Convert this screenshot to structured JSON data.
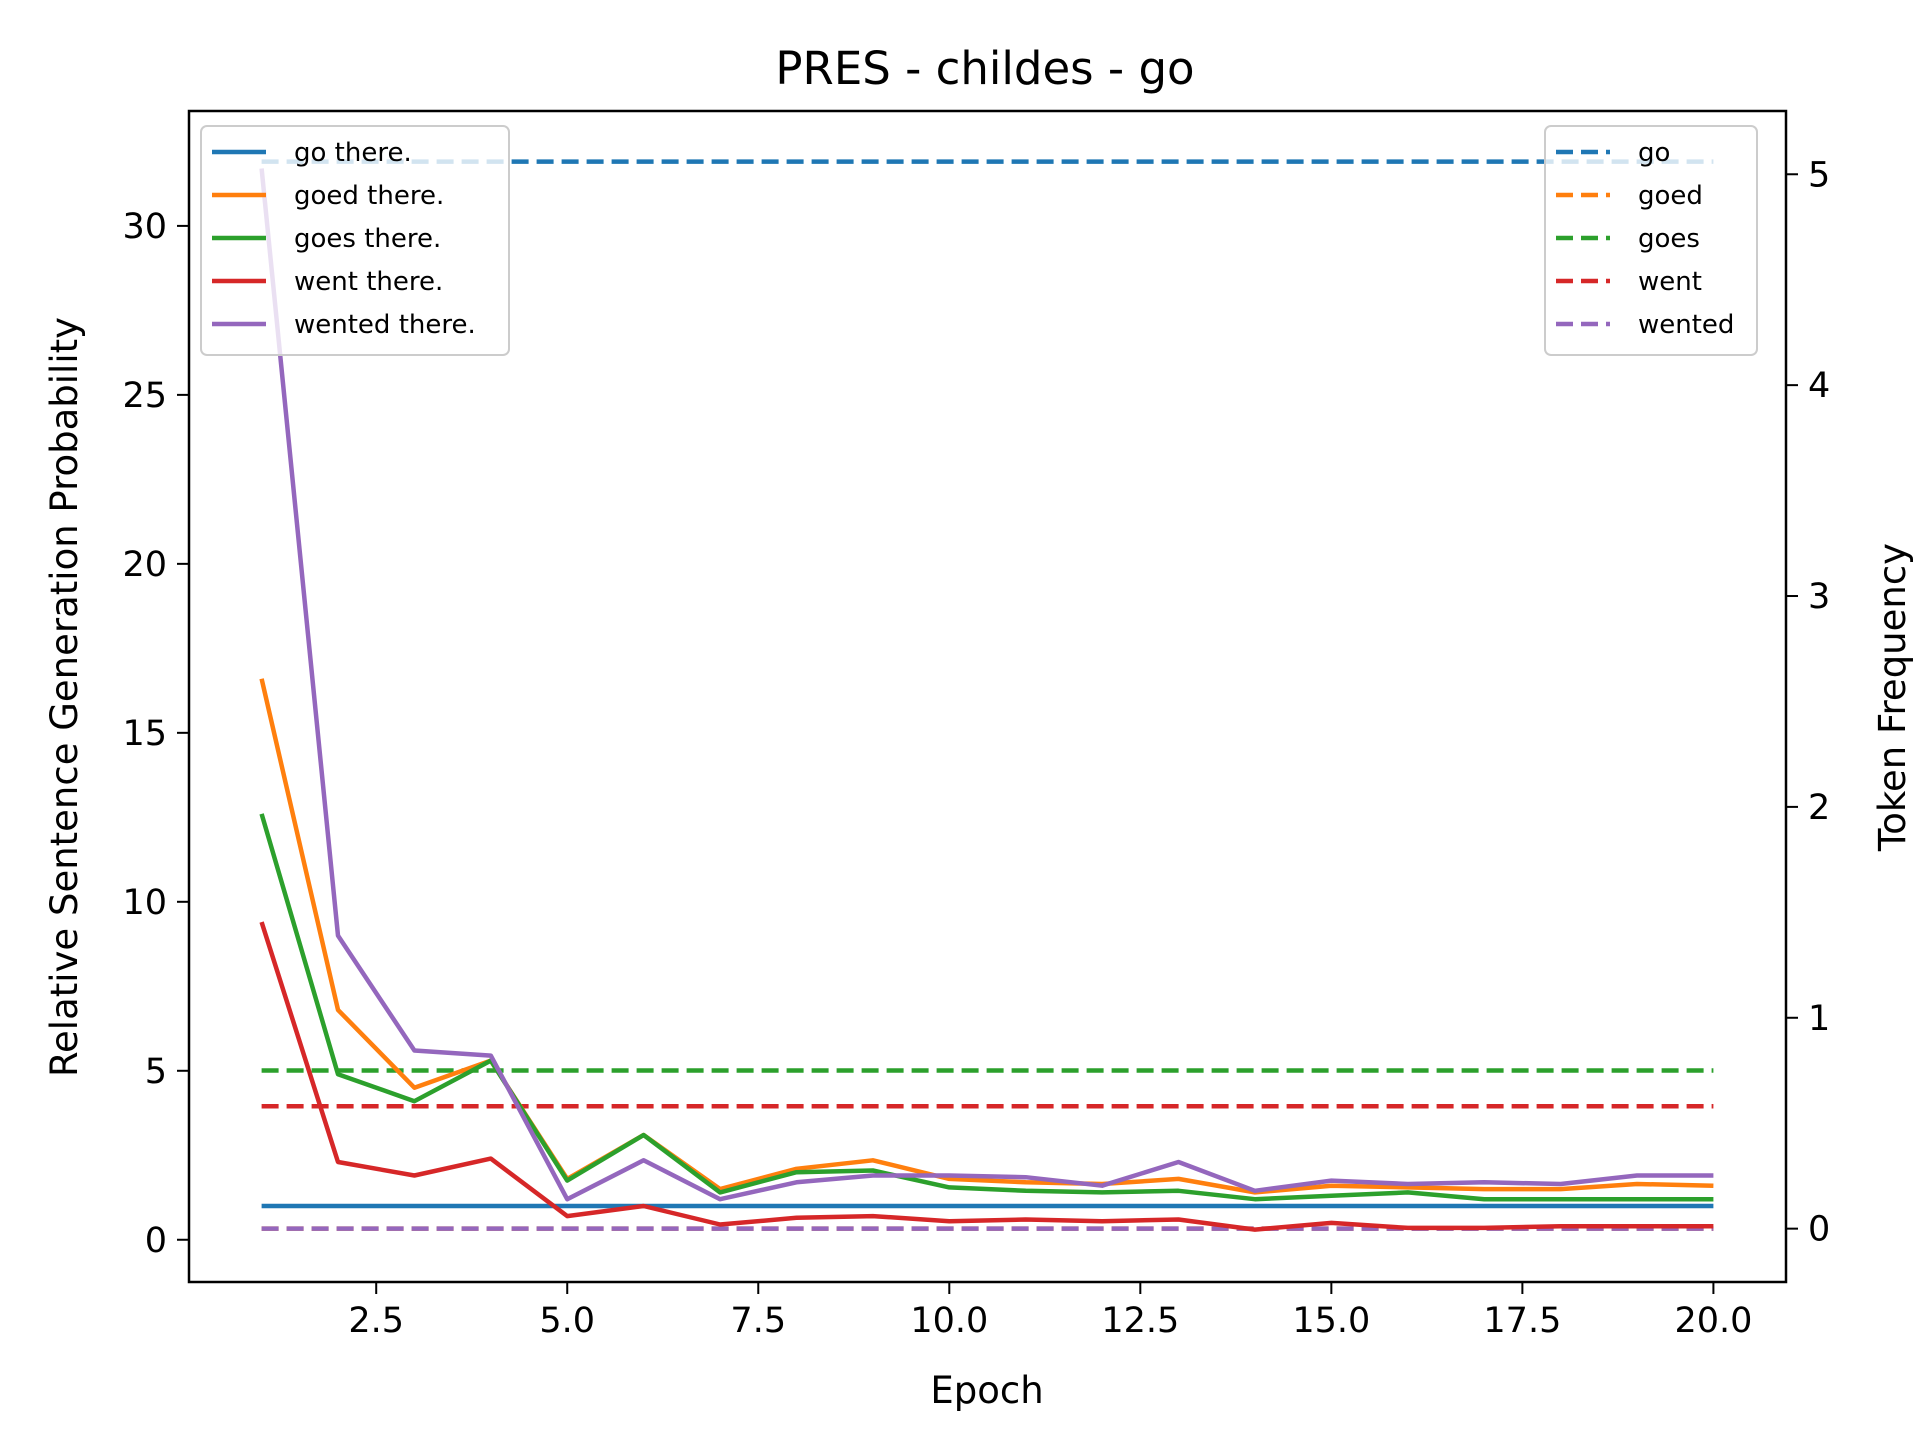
{
  "chart_data": {
    "type": "line",
    "title": "PRES - childes - go",
    "xlabel": "Epoch",
    "ylabel": "Relative Sentence Generation Probability",
    "y2label": "Token Frequency",
    "xlim": [
      0.05,
      20.95
    ],
    "ylim": [
      -1.25,
      33.4
    ],
    "y2lim": [
      -0.253,
      5.3
    ],
    "xticks": [
      2.5,
      5.0,
      7.5,
      10.0,
      12.5,
      15.0,
      17.5,
      20.0
    ],
    "xtick_labels": [
      "2.5",
      "5.0",
      "7.5",
      "10.0",
      "12.5",
      "15.0",
      "17.5",
      "20.0"
    ],
    "yticks": [
      0,
      5,
      10,
      15,
      20,
      25,
      30
    ],
    "ytick_labels": [
      "0",
      "5",
      "10",
      "15",
      "20",
      "25",
      "30"
    ],
    "y2ticks": [
      0,
      1,
      2,
      3,
      4,
      5
    ],
    "y2tick_labels": [
      "0",
      "1",
      "2",
      "3",
      "4",
      "5"
    ],
    "x": [
      1,
      2,
      3,
      4,
      5,
      6,
      7,
      8,
      9,
      10,
      11,
      12,
      13,
      14,
      15,
      16,
      17,
      18,
      19,
      20
    ],
    "series": [
      {
        "name": "go there.",
        "axis": "left",
        "style": "solid",
        "color": "#1f77b4",
        "values": [
          1.0,
          1.0,
          1.0,
          1.0,
          1.0,
          1.0,
          1.0,
          1.0,
          1.0,
          1.0,
          1.0,
          1.0,
          1.0,
          1.0,
          1.0,
          1.0,
          1.0,
          1.0,
          1.0,
          1.0
        ]
      },
      {
        "name": "goed there.",
        "axis": "left",
        "style": "solid",
        "color": "#ff7f0e",
        "values": [
          16.6,
          6.8,
          4.5,
          5.3,
          1.8,
          3.1,
          1.5,
          2.1,
          2.35,
          1.8,
          1.7,
          1.65,
          1.8,
          1.4,
          1.6,
          1.55,
          1.5,
          1.5,
          1.65,
          1.6
        ]
      },
      {
        "name": "goes there.",
        "axis": "left",
        "style": "solid",
        "color": "#2ca02c",
        "values": [
          12.6,
          4.9,
          4.1,
          5.3,
          1.75,
          3.1,
          1.4,
          2.0,
          2.05,
          1.55,
          1.45,
          1.4,
          1.45,
          1.2,
          1.3,
          1.4,
          1.2,
          1.2,
          1.2,
          1.2
        ]
      },
      {
        "name": "went there.",
        "axis": "left",
        "style": "solid",
        "color": "#d62728",
        "values": [
          9.4,
          2.3,
          1.9,
          2.4,
          0.7,
          1.0,
          0.45,
          0.65,
          0.7,
          0.55,
          0.6,
          0.55,
          0.6,
          0.3,
          0.5,
          0.35,
          0.35,
          0.4,
          0.4,
          0.4
        ]
      },
      {
        "name": "wented there.",
        "axis": "left",
        "style": "solid",
        "color": "#9467bd",
        "values": [
          31.7,
          9.0,
          5.6,
          5.45,
          1.2,
          2.35,
          1.2,
          1.7,
          1.9,
          1.9,
          1.85,
          1.6,
          2.3,
          1.45,
          1.75,
          1.65,
          1.7,
          1.65,
          1.9,
          1.9
        ]
      },
      {
        "name": "go",
        "axis": "right",
        "style": "dashed",
        "color": "#1f77b4",
        "values": [
          5.06,
          5.06,
          5.06,
          5.06,
          5.06,
          5.06,
          5.06,
          5.06,
          5.06,
          5.06,
          5.06,
          5.06,
          5.06,
          5.06,
          5.06,
          5.06,
          5.06,
          5.06,
          5.06,
          5.06
        ]
      },
      {
        "name": "goed",
        "axis": "right",
        "style": "dashed",
        "color": "#ff7f0e",
        "values": [
          0,
          0,
          0,
          0,
          0,
          0,
          0,
          0,
          0,
          0,
          0,
          0,
          0,
          0,
          0,
          0,
          0,
          0,
          0,
          0
        ]
      },
      {
        "name": "goes",
        "axis": "right",
        "style": "dashed",
        "color": "#2ca02c",
        "values": [
          0.75,
          0.75,
          0.75,
          0.75,
          0.75,
          0.75,
          0.75,
          0.75,
          0.75,
          0.75,
          0.75,
          0.75,
          0.75,
          0.75,
          0.75,
          0.75,
          0.75,
          0.75,
          0.75,
          0.75
        ]
      },
      {
        "name": "went",
        "axis": "right",
        "style": "dashed",
        "color": "#d62728",
        "values": [
          0.58,
          0.58,
          0.58,
          0.58,
          0.58,
          0.58,
          0.58,
          0.58,
          0.58,
          0.58,
          0.58,
          0.58,
          0.58,
          0.58,
          0.58,
          0.58,
          0.58,
          0.58,
          0.58,
          0.58
        ]
      },
      {
        "name": "wented",
        "axis": "right",
        "style": "dashed",
        "color": "#9467bd",
        "values": [
          0,
          0,
          0,
          0,
          0,
          0,
          0,
          0,
          0,
          0,
          0,
          0,
          0,
          0,
          0,
          0,
          0,
          0,
          0,
          0
        ]
      }
    ],
    "legend_left": {
      "placement": "upper left",
      "entries": [
        "go there.",
        "goed there.",
        "goes there.",
        "went there.",
        "wented there."
      ]
    },
    "legend_right": {
      "placement": "upper right",
      "entries": [
        "go",
        "goed",
        "goes",
        "went",
        "wented"
      ]
    },
    "grid": false
  }
}
